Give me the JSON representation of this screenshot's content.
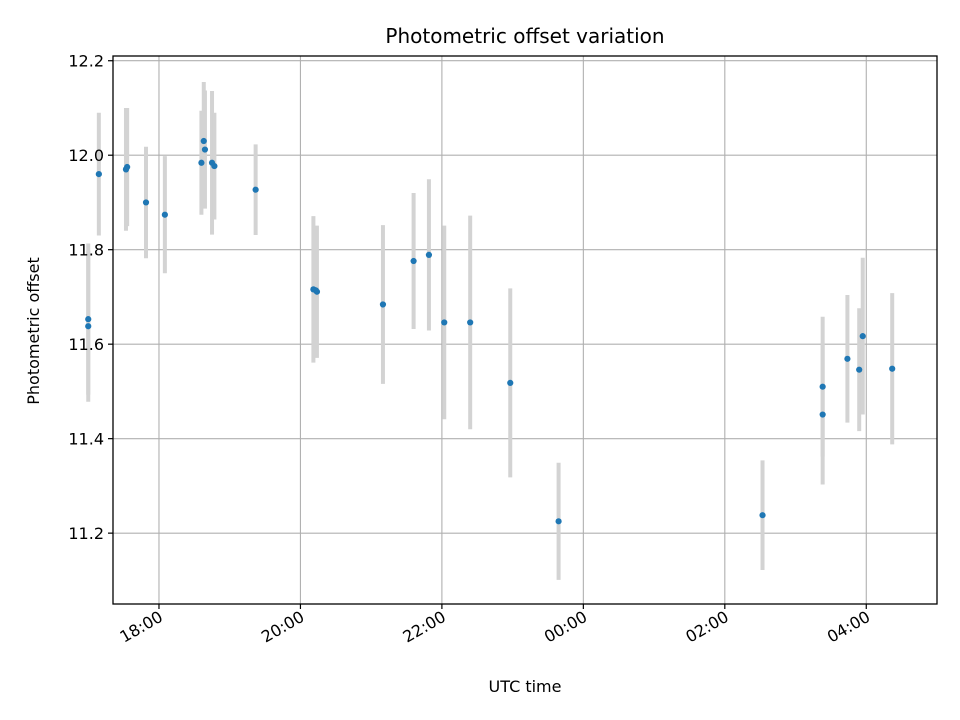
{
  "chart_data": {
    "type": "scatter",
    "title": "Photometric offset variation",
    "xlabel": "UTC time",
    "ylabel": "Photometric offset",
    "x_axis": "time (hours, wrapping past midnight)",
    "xlim": [
      "17:21",
      "05:00"
    ],
    "ylim": [
      11.05,
      12.21
    ],
    "x_ticks": [
      "18:00",
      "20:00",
      "22:00",
      "00:00",
      "02:00",
      "04:00"
    ],
    "y_ticks": [
      "11.2",
      "11.4",
      "11.6",
      "11.8",
      "12.0",
      "12.2"
    ],
    "grid": true,
    "colors": {
      "point": "#1f77b4",
      "errorbar": "#d3d3d3",
      "grid": "#b0b0b0"
    },
    "points": [
      {
        "x": "17:00",
        "y": 11.653,
        "err": 0.16
      },
      {
        "x": "17:00",
        "y": 11.638,
        "err": 0.16
      },
      {
        "x": "17:09",
        "y": 11.96,
        "err": 0.13
      },
      {
        "x": "17:32",
        "y": 11.97,
        "err": 0.13
      },
      {
        "x": "17:33",
        "y": 11.975,
        "err": 0.125
      },
      {
        "x": "17:49",
        "y": 11.9,
        "err": 0.118
      },
      {
        "x": "18:05",
        "y": 11.874,
        "err": 0.124
      },
      {
        "x": "18:36",
        "y": 11.984,
        "err": 0.11
      },
      {
        "x": "18:38",
        "y": 12.03,
        "err": 0.125
      },
      {
        "x": "18:39",
        "y": 12.012,
        "err": 0.125
      },
      {
        "x": "18:45",
        "y": 11.984,
        "err": 0.152
      },
      {
        "x": "18:47",
        "y": 11.977,
        "err": 0.113
      },
      {
        "x": "19:22",
        "y": 11.927,
        "err": 0.096
      },
      {
        "x": "20:11",
        "y": 11.716,
        "err": 0.155
      },
      {
        "x": "20:13",
        "y": 11.714,
        "err": 0.13
      },
      {
        "x": "20:14",
        "y": 11.711,
        "err": 0.14
      },
      {
        "x": "21:10",
        "y": 11.684,
        "err": 0.168
      },
      {
        "x": "21:36",
        "y": 11.776,
        "err": 0.144
      },
      {
        "x": "21:49",
        "y": 11.789,
        "err": 0.16
      },
      {
        "x": "22:02",
        "y": 11.646,
        "err": 0.205
      },
      {
        "x": "22:24",
        "y": 11.646,
        "err": 0.226
      },
      {
        "x": "22:58",
        "y": 11.518,
        "err": 0.2
      },
      {
        "x": "23:39",
        "y": 11.225,
        "err": 0.124
      },
      {
        "x": "02:32",
        "y": 11.238,
        "err": 0.116
      },
      {
        "x": "03:23",
        "y": 11.51,
        "err": 0.148
      },
      {
        "x": "03:23",
        "y": 11.451,
        "err": 0.148
      },
      {
        "x": "03:44",
        "y": 11.569,
        "err": 0.135
      },
      {
        "x": "03:54",
        "y": 11.546,
        "err": 0.13
      },
      {
        "x": "03:57",
        "y": 11.617,
        "err": 0.166
      },
      {
        "x": "04:22",
        "y": 11.548,
        "err": 0.16
      }
    ]
  }
}
